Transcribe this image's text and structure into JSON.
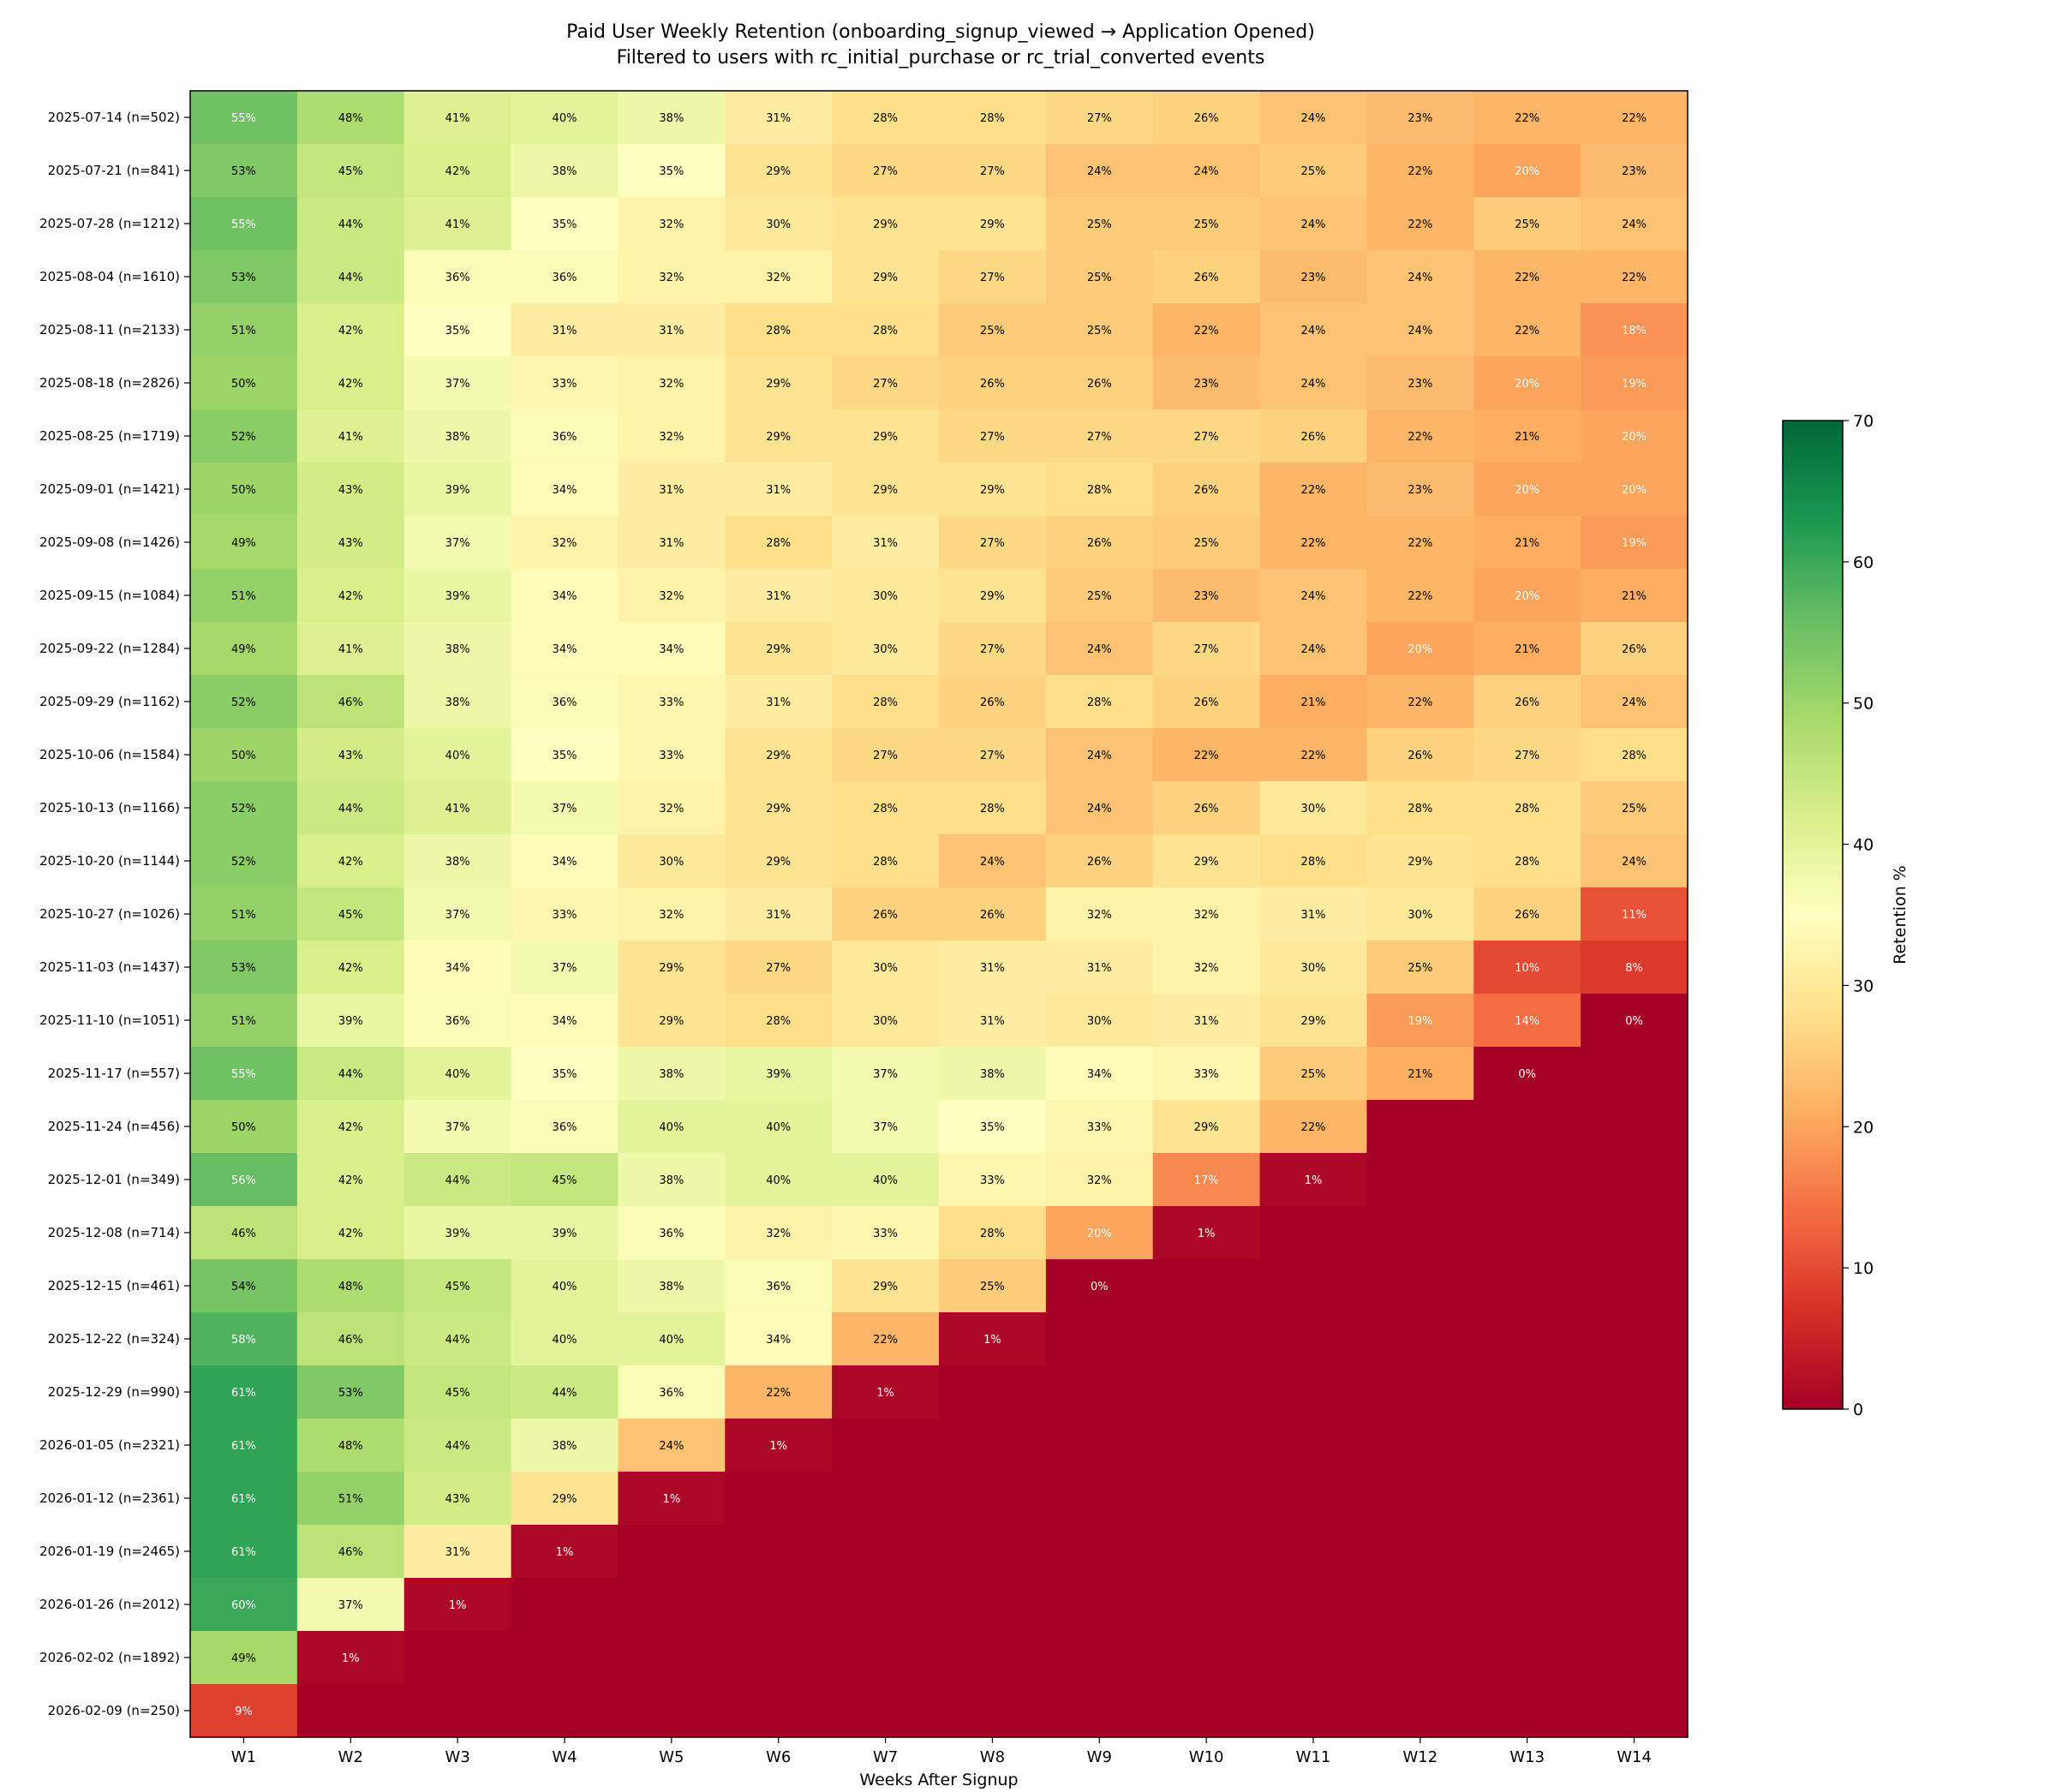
{
  "chart_data": {
    "type": "heatmap",
    "title": "Paid User Weekly Retention (onboarding_signup_viewed → Application Opened)",
    "subtitle": "Filtered to users with rc_initial_purchase or rc_trial_converted events",
    "xlabel": "Weeks After Signup",
    "ylabel": "",
    "columns": [
      "W1",
      "W2",
      "W3",
      "W4",
      "W5",
      "W6",
      "W7",
      "W8",
      "W9",
      "W10",
      "W11",
      "W12",
      "W13",
      "W14"
    ],
    "rows": [
      "2025-07-14 (n=502)",
      "2025-07-21 (n=841)",
      "2025-07-28 (n=1212)",
      "2025-08-04 (n=1610)",
      "2025-08-11 (n=2133)",
      "2025-08-18 (n=2826)",
      "2025-08-25 (n=1719)",
      "2025-09-01 (n=1421)",
      "2025-09-08 (n=1426)",
      "2025-09-15 (n=1084)",
      "2025-09-22 (n=1284)",
      "2025-09-29 (n=1162)",
      "2025-10-06 (n=1584)",
      "2025-10-13 (n=1166)",
      "2025-10-20 (n=1144)",
      "2025-10-27 (n=1026)",
      "2025-11-03 (n=1437)",
      "2025-11-10 (n=1051)",
      "2025-11-17 (n=557)",
      "2025-11-24 (n=456)",
      "2025-12-01 (n=349)",
      "2025-12-08 (n=714)",
      "2025-12-15 (n=461)",
      "2025-12-22 (n=324)",
      "2025-12-29 (n=990)",
      "2026-01-05 (n=2321)",
      "2026-01-12 (n=2361)",
      "2026-01-19 (n=2465)",
      "2026-01-26 (n=2012)",
      "2026-02-02 (n=1892)",
      "2026-02-09 (n=250)"
    ],
    "values": [
      [
        55,
        48,
        41,
        40,
        38,
        31,
        28,
        28,
        27,
        26,
        24,
        23,
        22,
        22
      ],
      [
        53,
        45,
        42,
        38,
        35,
        29,
        27,
        27,
        24,
        24,
        25,
        22,
        20,
        23
      ],
      [
        55,
        44,
        41,
        35,
        32,
        30,
        29,
        29,
        25,
        25,
        24,
        22,
        25,
        24
      ],
      [
        53,
        44,
        36,
        36,
        32,
        32,
        29,
        27,
        25,
        26,
        23,
        24,
        22,
        22
      ],
      [
        51,
        42,
        35,
        31,
        31,
        28,
        28,
        25,
        25,
        22,
        24,
        24,
        22,
        18
      ],
      [
        50,
        42,
        37,
        33,
        32,
        29,
        27,
        26,
        26,
        23,
        24,
        23,
        20,
        19
      ],
      [
        52,
        41,
        38,
        36,
        32,
        29,
        29,
        27,
        27,
        27,
        26,
        22,
        21,
        20
      ],
      [
        50,
        43,
        39,
        34,
        31,
        31,
        29,
        29,
        28,
        26,
        22,
        23,
        20,
        20
      ],
      [
        49,
        43,
        37,
        32,
        31,
        28,
        31,
        27,
        26,
        25,
        22,
        22,
        21,
        19
      ],
      [
        51,
        42,
        39,
        34,
        32,
        31,
        30,
        29,
        25,
        23,
        24,
        22,
        20,
        21
      ],
      [
        49,
        41,
        38,
        34,
        34,
        29,
        30,
        27,
        24,
        27,
        24,
        20,
        21,
        26
      ],
      [
        52,
        46,
        38,
        36,
        33,
        31,
        28,
        26,
        28,
        26,
        21,
        22,
        26,
        24
      ],
      [
        50,
        43,
        40,
        35,
        33,
        29,
        27,
        27,
        24,
        22,
        22,
        26,
        27,
        28
      ],
      [
        52,
        44,
        41,
        37,
        32,
        29,
        28,
        28,
        24,
        26,
        30,
        28,
        28,
        25
      ],
      [
        52,
        42,
        38,
        34,
        30,
        29,
        28,
        24,
        26,
        29,
        28,
        29,
        28,
        24
      ],
      [
        51,
        45,
        37,
        33,
        32,
        31,
        26,
        26,
        32,
        32,
        31,
        30,
        26,
        11
      ],
      [
        53,
        42,
        34,
        37,
        29,
        27,
        30,
        31,
        31,
        32,
        30,
        25,
        10,
        8
      ],
      [
        51,
        39,
        36,
        34,
        29,
        28,
        30,
        31,
        30,
        31,
        29,
        19,
        14,
        0
      ],
      [
        55,
        44,
        40,
        35,
        38,
        39,
        37,
        38,
        34,
        33,
        25,
        21,
        0,
        null
      ],
      [
        50,
        42,
        37,
        36,
        40,
        40,
        37,
        35,
        33,
        29,
        22,
        null,
        null,
        null
      ],
      [
        56,
        42,
        44,
        45,
        38,
        40,
        40,
        33,
        32,
        17,
        1,
        null,
        null,
        null
      ],
      [
        46,
        42,
        39,
        39,
        36,
        32,
        33,
        28,
        20,
        1,
        null,
        null,
        null,
        null
      ],
      [
        54,
        48,
        45,
        40,
        38,
        36,
        29,
        25,
        0,
        null,
        null,
        null,
        null,
        null
      ],
      [
        58,
        46,
        44,
        40,
        40,
        34,
        22,
        1,
        null,
        null,
        null,
        null,
        null,
        null
      ],
      [
        61,
        53,
        45,
        44,
        36,
        22,
        1,
        null,
        null,
        null,
        null,
        null,
        null,
        null
      ],
      [
        61,
        48,
        44,
        38,
        24,
        1,
        null,
        null,
        null,
        null,
        null,
        null,
        null,
        null
      ],
      [
        61,
        51,
        43,
        29,
        1,
        null,
        null,
        null,
        null,
        null,
        null,
        null,
        null,
        null
      ],
      [
        61,
        46,
        31,
        1,
        null,
        null,
        null,
        null,
        null,
        null,
        null,
        null,
        null,
        null
      ],
      [
        60,
        37,
        1,
        null,
        null,
        null,
        null,
        null,
        null,
        null,
        null,
        null,
        null,
        null
      ],
      [
        49,
        1,
        null,
        null,
        null,
        null,
        null,
        null,
        null,
        null,
        null,
        null,
        null,
        null
      ],
      [
        9,
        null,
        null,
        null,
        null,
        null,
        null,
        null,
        null,
        null,
        null,
        null,
        null,
        null
      ]
    ],
    "value_suffix": "%",
    "empty_cell_value": 0,
    "colorscale": "RdYlGn",
    "vmin": 0,
    "vmax": 70,
    "colorbar": {
      "label": "Retention %",
      "ticks": [
        0,
        10,
        20,
        30,
        40,
        50,
        60,
        70
      ]
    },
    "grid": false
  }
}
